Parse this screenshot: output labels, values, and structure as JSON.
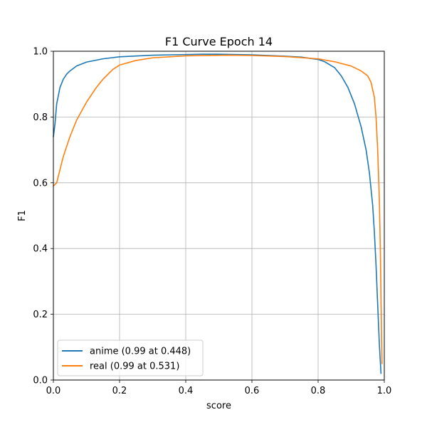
{
  "chart_data": {
    "type": "line",
    "title": "F1 Curve Epoch 14",
    "xlabel": "score",
    "ylabel": "F1",
    "xlim": [
      0,
      1
    ],
    "ylim": [
      0,
      1
    ],
    "xticks": [
      "0.0",
      "0.2",
      "0.4",
      "0.6",
      "0.8",
      "1.0"
    ],
    "yticks": [
      "0.0",
      "0.2",
      "0.4",
      "0.6",
      "0.8",
      "1.0"
    ],
    "grid": true,
    "legend_position": "lower-left",
    "series": [
      {
        "name": "anime (0.99 at 0.448)",
        "color": "#1f77b4",
        "points": [
          [
            0.0,
            0.74
          ],
          [
            0.005,
            0.78
          ],
          [
            0.01,
            0.84
          ],
          [
            0.02,
            0.89
          ],
          [
            0.03,
            0.915
          ],
          [
            0.04,
            0.93
          ],
          [
            0.05,
            0.94
          ],
          [
            0.07,
            0.955
          ],
          [
            0.1,
            0.967
          ],
          [
            0.15,
            0.977
          ],
          [
            0.2,
            0.983
          ],
          [
            0.3,
            0.988
          ],
          [
            0.4,
            0.99
          ],
          [
            0.448,
            0.991
          ],
          [
            0.5,
            0.991
          ],
          [
            0.6,
            0.989
          ],
          [
            0.7,
            0.985
          ],
          [
            0.75,
            0.982
          ],
          [
            0.8,
            0.975
          ],
          [
            0.82,
            0.968
          ],
          [
            0.85,
            0.95
          ],
          [
            0.87,
            0.925
          ],
          [
            0.89,
            0.89
          ],
          [
            0.91,
            0.84
          ],
          [
            0.93,
            0.77
          ],
          [
            0.945,
            0.7
          ],
          [
            0.955,
            0.63
          ],
          [
            0.965,
            0.53
          ],
          [
            0.97,
            0.45
          ],
          [
            0.975,
            0.35
          ],
          [
            0.98,
            0.23
          ],
          [
            0.985,
            0.11
          ],
          [
            0.99,
            0.02
          ]
        ]
      },
      {
        "name": "real (0.99 at 0.531)",
        "color": "#ff7f0e",
        "points": [
          [
            0.0,
            0.59
          ],
          [
            0.01,
            0.6
          ],
          [
            0.02,
            0.64
          ],
          [
            0.03,
            0.68
          ],
          [
            0.05,
            0.74
          ],
          [
            0.07,
            0.79
          ],
          [
            0.1,
            0.845
          ],
          [
            0.13,
            0.89
          ],
          [
            0.15,
            0.915
          ],
          [
            0.18,
            0.945
          ],
          [
            0.2,
            0.958
          ],
          [
            0.25,
            0.972
          ],
          [
            0.3,
            0.98
          ],
          [
            0.4,
            0.986
          ],
          [
            0.531,
            0.988
          ],
          [
            0.6,
            0.987
          ],
          [
            0.7,
            0.984
          ],
          [
            0.8,
            0.977
          ],
          [
            0.85,
            0.968
          ],
          [
            0.9,
            0.955
          ],
          [
            0.93,
            0.94
          ],
          [
            0.95,
            0.925
          ],
          [
            0.96,
            0.905
          ],
          [
            0.97,
            0.86
          ],
          [
            0.975,
            0.8
          ],
          [
            0.98,
            0.7
          ],
          [
            0.985,
            0.55
          ],
          [
            0.988,
            0.4
          ],
          [
            0.99,
            0.25
          ],
          [
            0.993,
            0.05
          ]
        ]
      }
    ]
  }
}
